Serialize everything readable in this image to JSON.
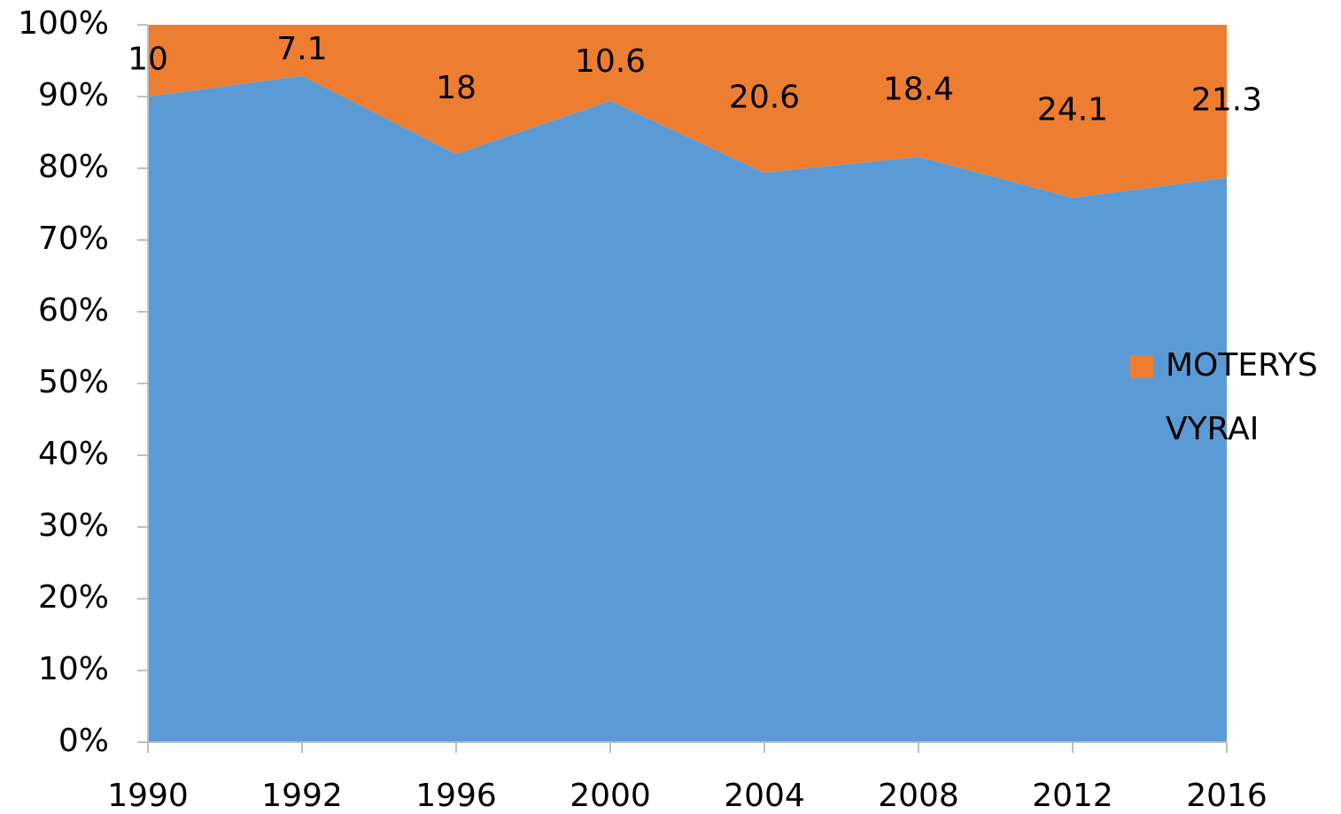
{
  "chart_data": {
    "type": "stacked_area",
    "categories": [
      "1990",
      "1992",
      "1996",
      "2000",
      "2004",
      "2008",
      "2012",
      "2016"
    ],
    "series": [
      {
        "name": "VYRAI",
        "color": "#5b9bd5",
        "values": [
          90,
          92.9,
          82,
          89.4,
          79.4,
          81.6,
          75.9,
          78.7
        ]
      },
      {
        "name": "MOTERYS",
        "color": "#ed7d31",
        "values": [
          10,
          7.1,
          18,
          10.6,
          20.6,
          18.4,
          24.1,
          21.3
        ],
        "data_labels": true
      }
    ],
    "ylim": [
      0,
      100
    ],
    "yticks": [
      {
        "value": 0,
        "label": "0%"
      },
      {
        "value": 10,
        "label": "10%"
      },
      {
        "value": 20,
        "label": "20%"
      },
      {
        "value": 30,
        "label": "30%"
      },
      {
        "value": 40,
        "label": "40%"
      },
      {
        "value": 50,
        "label": "50%"
      },
      {
        "value": 60,
        "label": "60%"
      },
      {
        "value": 70,
        "label": "70%"
      },
      {
        "value": 80,
        "label": "80%"
      },
      {
        "value": 90,
        "label": "90%"
      },
      {
        "value": 100,
        "label": "100%"
      }
    ],
    "legend": "right"
  }
}
